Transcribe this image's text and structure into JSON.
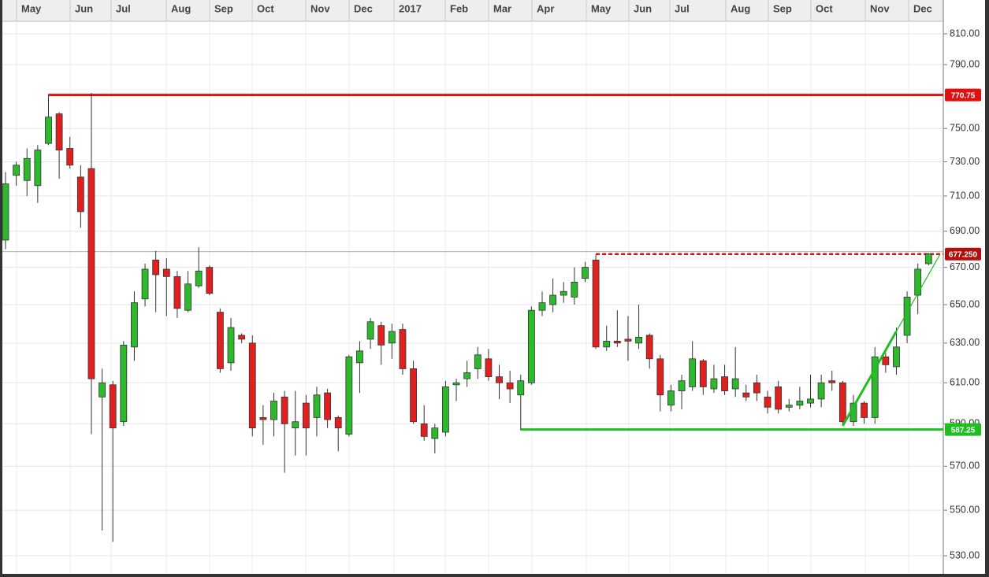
{
  "chart_data": {
    "type": "candlestick",
    "log_scale": true,
    "grid": true,
    "up_color": "#2db82d",
    "down_color": "#e0201f",
    "x_labels": [
      "May",
      "Jun",
      "Jul",
      "Aug",
      "Sep",
      "Oct",
      "Nov",
      "Dec",
      "2017",
      "Feb",
      "Mar",
      "Apr",
      "May",
      "Jun",
      "Jul",
      "Aug",
      "Sep",
      "Oct",
      "Nov",
      "Dec"
    ],
    "open": [
      685,
      722,
      719,
      716,
      741,
      759,
      738,
      721,
      726,
      603,
      609,
      591,
      628,
      653,
      674,
      669,
      665,
      647,
      660,
      670,
      646,
      620,
      634,
      630,
      593,
      592,
      603,
      588,
      600,
      593,
      605,
      593,
      585,
      620,
      632,
      639,
      630,
      637,
      617,
      590,
      583,
      586,
      609,
      612,
      617,
      622,
      613,
      610,
      604,
      610,
      647,
      650,
      655,
      654,
      664,
      674,
      628,
      631,
      632,
      630,
      634,
      622,
      599,
      606,
      608,
      621,
      607,
      613,
      607,
      605,
      610,
      603,
      608,
      598,
      599,
      600,
      602,
      611,
      610,
      591,
      600,
      593,
      623,
      618,
      634,
      655,
      672
    ],
    "high": [
      724,
      730,
      738,
      740,
      771,
      760,
      745,
      728,
      772,
      617,
      611,
      631,
      657,
      672,
      679,
      675,
      668,
      668,
      681,
      671,
      648,
      643,
      635,
      634,
      599,
      605,
      606,
      606,
      604,
      608,
      607,
      594,
      624,
      631,
      643,
      641,
      640,
      640,
      621,
      599,
      590,
      611,
      612,
      621,
      628,
      627,
      619,
      616,
      614,
      649,
      657,
      664,
      662,
      670,
      673,
      677,
      639,
      647,
      644,
      650,
      635,
      624,
      609,
      614,
      631,
      622,
      619,
      619,
      628,
      609,
      614,
      606,
      611,
      602,
      608,
      614,
      614,
      616,
      611,
      604,
      601,
      628,
      625,
      638,
      657,
      672,
      678
    ],
    "low": [
      680,
      716,
      710,
      706,
      740,
      720,
      726,
      692,
      585,
      541,
      536,
      589,
      621,
      649,
      646,
      644,
      643,
      646,
      659,
      655,
      615,
      616,
      630,
      584,
      580,
      584,
      567,
      575,
      575,
      584,
      588,
      577,
      584,
      605,
      627,
      619,
      622,
      614,
      590,
      582,
      576,
      584,
      601,
      608,
      612,
      611,
      602,
      600,
      587,
      609,
      644,
      646,
      651,
      650,
      662,
      627,
      626,
      628,
      621,
      627,
      617,
      596,
      596,
      597,
      606,
      604,
      605,
      604,
      603,
      601,
      601,
      595,
      595,
      596,
      597,
      598,
      598,
      606,
      589,
      589,
      590,
      590,
      615,
      614,
      630,
      645,
      671
    ],
    "close": [
      717,
      728,
      732,
      737,
      757,
      737,
      728,
      701,
      612,
      610,
      588,
      629,
      651,
      669,
      666,
      665,
      648,
      661,
      668,
      656,
      617,
      638,
      632,
      588,
      592,
      601,
      590,
      591,
      588,
      604,
      592,
      588,
      623,
      626,
      641,
      629,
      636,
      617,
      591,
      584,
      588,
      608,
      610,
      615,
      624,
      613,
      610,
      607,
      611,
      647,
      651,
      655,
      657,
      662,
      670,
      628,
      631,
      630,
      631,
      633,
      622,
      604,
      606,
      611,
      622,
      608,
      612,
      606,
      612,
      603,
      605,
      598,
      597,
      599,
      601,
      602,
      610,
      610,
      591,
      600,
      593,
      623,
      619,
      628,
      654,
      669,
      677.25
    ],
    "ylim": [
      522.6,
      817.8
    ],
    "yticks": [
      {
        "value": 530,
        "label": "530.00"
      },
      {
        "value": 550,
        "label": "550.00"
      },
      {
        "value": 570,
        "label": "570.00"
      },
      {
        "value": 590,
        "label": "590.00"
      },
      {
        "value": 610,
        "label": "610.00"
      },
      {
        "value": 630,
        "label": "630.00"
      },
      {
        "value": 650,
        "label": "650.00"
      },
      {
        "value": 670,
        "label": "670.00"
      },
      {
        "value": 690,
        "label": "690.00"
      },
      {
        "value": 710,
        "label": "710.00"
      },
      {
        "value": 730,
        "label": "730.00"
      },
      {
        "value": 750,
        "label": "750.00"
      },
      {
        "value": 790,
        "label": "790.00"
      },
      {
        "value": 810,
        "label": "810.00"
      }
    ],
    "levels": [
      {
        "value": 770.75,
        "color": "#e01010"
      },
      {
        "value": 587.25,
        "color": "#1fbf1f"
      }
    ],
    "last_price": {
      "value": 677.25,
      "label": "677.250",
      "color": "#b01010"
    }
  }
}
